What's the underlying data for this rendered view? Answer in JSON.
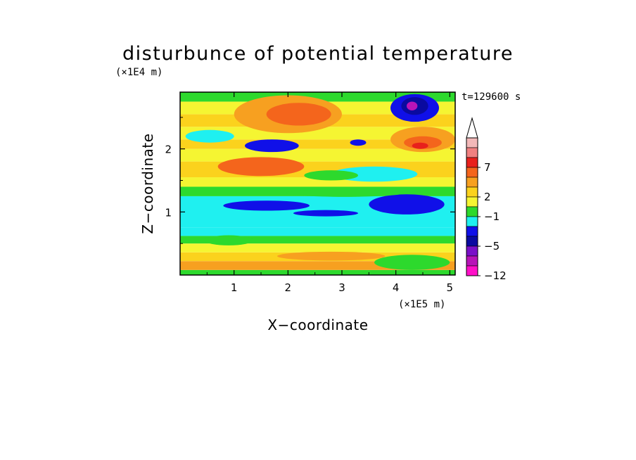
{
  "chart_data": {
    "type": "heatmap",
    "title": "disturbunce of potential temperature",
    "xlabel": "X−coordinate",
    "ylabel": "Z−coordinate",
    "x_unit": "(×1E5 m)",
    "y_unit": "(×1E4 m)",
    "time_label": "t=129600 s",
    "xlim": [
      0,
      5.1
    ],
    "ylim": [
      0,
      2.9
    ],
    "x_ticks": [
      {
        "value": 1,
        "label": "1"
      },
      {
        "value": 2,
        "label": "2"
      },
      {
        "value": 3,
        "label": "3"
      },
      {
        "value": 4,
        "label": "4"
      },
      {
        "value": 5,
        "label": "5"
      }
    ],
    "y_ticks": [
      {
        "value": 1,
        "label": "1"
      },
      {
        "value": 2,
        "label": "2"
      }
    ],
    "colorbar": {
      "extend_top": true,
      "bins": [
        {
          "color": "#f2b8b8",
          "label": ""
        },
        {
          "color": "#f08080",
          "label": ""
        },
        {
          "color": "#e8201c",
          "label": "7"
        },
        {
          "color": "#f4651c",
          "label": ""
        },
        {
          "color": "#f7a020",
          "label": ""
        },
        {
          "color": "#fbd21d",
          "label": "2"
        },
        {
          "color": "#f5f532",
          "label": ""
        },
        {
          "color": "#2dd92d",
          "label": "−1"
        },
        {
          "color": "#1ff0f0",
          "label": ""
        },
        {
          "color": "#1010e8",
          "label": ""
        },
        {
          "color": "#0a0aa0",
          "label": "−5"
        },
        {
          "color": "#7a10c8",
          "label": ""
        },
        {
          "color": "#b814b8",
          "label": ""
        },
        {
          "color": "#ff10c8",
          "label": "−12"
        }
      ]
    },
    "field_base": [
      {
        "z0": 0.0,
        "z1": 0.08,
        "color": "#2dd92d"
      },
      {
        "z0": 0.08,
        "z1": 0.22,
        "color": "#f7a020"
      },
      {
        "z0": 0.22,
        "z1": 0.36,
        "color": "#fbd21d"
      },
      {
        "z0": 0.36,
        "z1": 0.5,
        "color": "#f5f532"
      },
      {
        "z0": 0.5,
        "z1": 0.62,
        "color": "#2dd92d"
      },
      {
        "z0": 0.62,
        "z1": 0.75,
        "color": "#1ff0f0"
      },
      {
        "z0": 0.75,
        "z1": 1.25,
        "color": "#1ff0f0"
      },
      {
        "z0": 1.25,
        "z1": 1.4,
        "color": "#2dd92d"
      },
      {
        "z0": 1.4,
        "z1": 1.55,
        "color": "#f5f532"
      },
      {
        "z0": 1.55,
        "z1": 1.8,
        "color": "#fbd21d"
      },
      {
        "z0": 1.8,
        "z1": 2.0,
        "color": "#f5f532"
      },
      {
        "z0": 2.0,
        "z1": 2.15,
        "color": "#fbd21d"
      },
      {
        "z0": 2.15,
        "z1": 2.35,
        "color": "#f5f532"
      },
      {
        "z0": 2.35,
        "z1": 2.55,
        "color": "#fbd21d"
      },
      {
        "z0": 2.55,
        "z1": 2.75,
        "color": "#f5f532"
      },
      {
        "z0": 2.75,
        "z1": 2.9,
        "color": "#2dd92d"
      }
    ],
    "features": [
      {
        "x": 2.0,
        "z": 2.55,
        "rx": 1.0,
        "rz": 0.3,
        "color": "#f7a020"
      },
      {
        "x": 2.2,
        "z": 2.55,
        "rx": 0.6,
        "rz": 0.18,
        "color": "#f4651c"
      },
      {
        "x": 4.5,
        "z": 2.15,
        "rx": 0.6,
        "rz": 0.2,
        "color": "#f7a020"
      },
      {
        "x": 4.5,
        "z": 2.1,
        "rx": 0.35,
        "rz": 0.1,
        "color": "#f4651c"
      },
      {
        "x": 4.45,
        "z": 2.05,
        "rx": 0.15,
        "rz": 0.05,
        "color": "#e8201c"
      },
      {
        "x": 4.35,
        "z": 2.65,
        "rx": 0.45,
        "rz": 0.22,
        "color": "#1010e8"
      },
      {
        "x": 4.35,
        "z": 2.68,
        "rx": 0.25,
        "rz": 0.14,
        "color": "#0a0aa0"
      },
      {
        "x": 4.3,
        "z": 2.68,
        "rx": 0.1,
        "rz": 0.07,
        "color": "#b814b8"
      },
      {
        "x": 1.7,
        "z": 2.05,
        "rx": 0.5,
        "rz": 0.1,
        "color": "#1010e8"
      },
      {
        "x": 3.3,
        "z": 2.1,
        "rx": 0.15,
        "rz": 0.05,
        "color": "#1010e8"
      },
      {
        "x": 0.55,
        "z": 2.2,
        "rx": 0.45,
        "rz": 0.1,
        "color": "#1ff0f0"
      },
      {
        "x": 3.6,
        "z": 1.6,
        "rx": 0.8,
        "rz": 0.12,
        "color": "#1ff0f0"
      },
      {
        "x": 2.8,
        "z": 1.58,
        "rx": 0.5,
        "rz": 0.08,
        "color": "#2dd92d"
      },
      {
        "x": 1.5,
        "z": 1.72,
        "rx": 0.8,
        "rz": 0.15,
        "color": "#f4651c"
      },
      {
        "x": 1.6,
        "z": 1.1,
        "rx": 0.8,
        "rz": 0.08,
        "color": "#1010e8"
      },
      {
        "x": 2.7,
        "z": 0.98,
        "rx": 0.6,
        "rz": 0.05,
        "color": "#1010e8"
      },
      {
        "x": 4.2,
        "z": 1.12,
        "rx": 0.7,
        "rz": 0.16,
        "color": "#1010e8"
      },
      {
        "x": 3.05,
        "z": 1.3,
        "rx": 1.1,
        "rz": 0.06,
        "color": "#2dd92d"
      },
      {
        "x": 0.9,
        "z": 0.55,
        "rx": 0.45,
        "rz": 0.08,
        "color": "#2dd92d"
      },
      {
        "x": 4.3,
        "z": 0.2,
        "rx": 0.7,
        "rz": 0.12,
        "color": "#2dd92d"
      },
      {
        "x": 2.8,
        "z": 0.3,
        "rx": 1.0,
        "rz": 0.07,
        "color": "#f7a020"
      }
    ]
  }
}
